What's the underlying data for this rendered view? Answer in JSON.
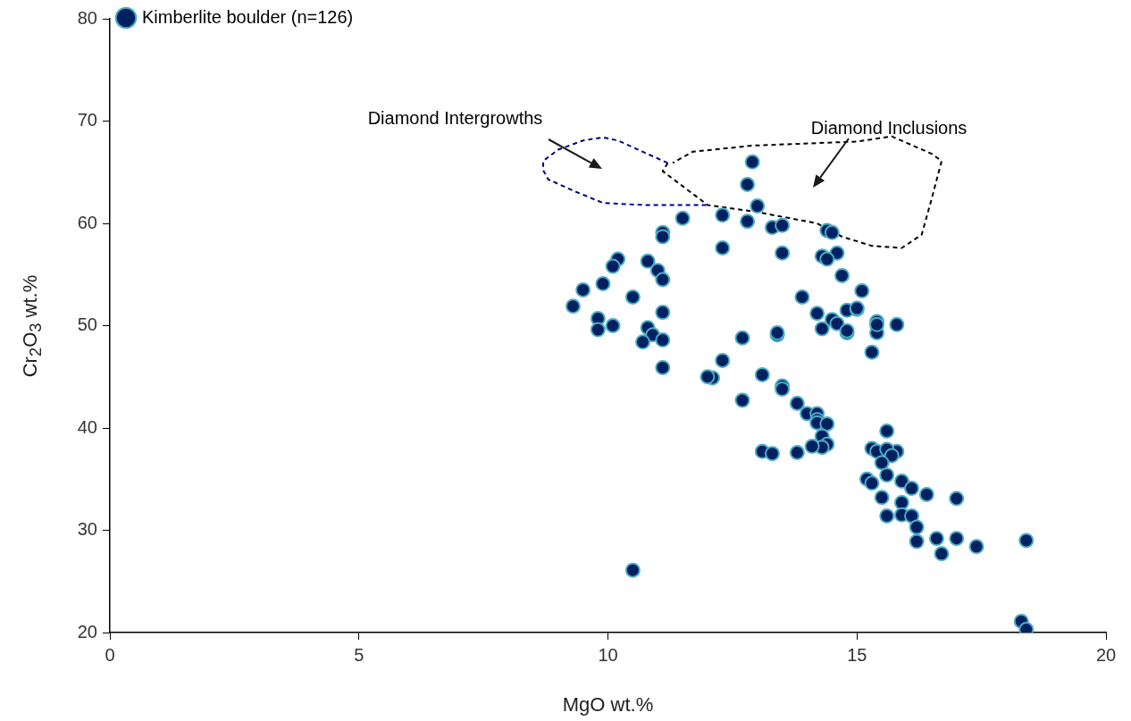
{
  "chart_data": {
    "type": "scatter",
    "xlabel": "MgO wt.%",
    "ylabel": "Cr$_{2}$O$_{3}$ wt.%",
    "xlim": [
      0,
      20
    ],
    "xticks": [
      0,
      5,
      10,
      15,
      20
    ],
    "ylim": [
      20,
      80
    ],
    "yticks": [
      20,
      30,
      40,
      50,
      60,
      70,
      80
    ],
    "grid": false,
    "legend": "top left",
    "marker": "circle",
    "annotations": [
      "Diamond Intergrowths",
      "Diamond Inclusions"
    ],
    "series": [
      {
        "name": "Kimberlite boulder (n=126)",
        "color": "#002060",
        "x": [
          12.9,
          12.8,
          13.0,
          12.3,
          12.8,
          11.5,
          13.3,
          13.5,
          14.4,
          14.5,
          11.1,
          11.1,
          12.3,
          13.5,
          14.6,
          14.3,
          14.4,
          10.2,
          10.1,
          10.8,
          11.0,
          11.1,
          9.5,
          9.9,
          10.5,
          9.3,
          11.1,
          9.8,
          9.8,
          10.1,
          10.8,
          10.9,
          11.1,
          10.7,
          11.1,
          12.3,
          12.1,
          12.0,
          12.7,
          13.4,
          13.4,
          13.1,
          13.5,
          13.5,
          12.7,
          13.9,
          14.2,
          14.5,
          14.6,
          14.3,
          14.7,
          15.1,
          14.8,
          15.0,
          15.0,
          14.8,
          14.8,
          15.4,
          15.4,
          15.4,
          15.8,
          15.3,
          13.8,
          14.0,
          14.2,
          14.2,
          14.2,
          14.4,
          14.3,
          14.4,
          14.3,
          14.1,
          13.8,
          13.1,
          13.3,
          15.6,
          15.3,
          15.4,
          15.8,
          15.6,
          15.7,
          15.5,
          15.2,
          15.3,
          15.6,
          15.9,
          16.1,
          16.4,
          17.0,
          15.5,
          15.9,
          15.6,
          15.9,
          16.1,
          16.2,
          16.2,
          16.6,
          17.0,
          16.7,
          17.4,
          18.4,
          18.3,
          18.4,
          10.5
        ],
        "values": [
          66.0,
          63.8,
          61.7,
          60.8,
          60.2,
          60.5,
          59.6,
          59.8,
          59.3,
          59.1,
          59.1,
          58.7,
          57.6,
          57.1,
          57.1,
          56.8,
          56.5,
          56.5,
          55.8,
          56.3,
          55.4,
          54.5,
          53.5,
          54.1,
          52.8,
          51.9,
          51.3,
          50.7,
          49.6,
          50.0,
          49.8,
          49.1,
          48.6,
          48.4,
          45.9,
          46.6,
          44.9,
          45.0,
          48.8,
          49.1,
          49.3,
          45.2,
          44.1,
          43.8,
          42.7,
          52.8,
          51.2,
          50.6,
          50.2,
          49.7,
          54.9,
          53.4,
          51.5,
          51.6,
          51.7,
          49.3,
          49.5,
          50.4,
          49.3,
          50.1,
          50.1,
          47.4,
          42.4,
          41.4,
          41.4,
          40.8,
          40.5,
          40.4,
          39.2,
          38.4,
          38.1,
          38.2,
          37.6,
          37.7,
          37.5,
          39.7,
          38.0,
          37.7,
          37.7,
          37.9,
          37.3,
          36.6,
          35.0,
          34.6,
          35.4,
          34.8,
          34.1,
          33.5,
          33.1,
          33.2,
          32.7,
          31.4,
          31.5,
          31.4,
          30.3,
          28.9,
          29.2,
          29.2,
          27.7,
          28.4,
          29.0,
          21.1,
          20.3,
          26.1
        ]
      },
      {
        "type": "line",
        "color": "#000080",
        "line_style": "dashed",
        "marker": "none",
        "x": [
          11.2,
          10.7,
          10.2,
          9.9,
          9.5,
          9.0,
          8.7,
          8.7,
          8.8,
          9.3,
          9.9,
          10.7,
          12.0
        ],
        "values": [
          65.9,
          67.0,
          68.1,
          68.4,
          68.1,
          67.2,
          66.1,
          65.2,
          64.3,
          63.2,
          62.0,
          61.8,
          61.8
        ]
      },
      {
        "type": "line",
        "color": "#000000",
        "line_style": "dashed",
        "marker": "none",
        "x": [
          11.2,
          11.1,
          12.0,
          13.0,
          14.2,
          14.7,
          15.3,
          15.9,
          16.3,
          16.5,
          16.7,
          16.5,
          15.7,
          15.0,
          12.9,
          11.7,
          11.3
        ],
        "values": [
          65.9,
          65.1,
          61.8,
          61.1,
          60.0,
          58.7,
          57.8,
          57.6,
          58.9,
          62.4,
          66.1,
          66.8,
          68.5,
          68.0,
          67.6,
          67.0,
          65.9
        ]
      }
    ]
  }
}
